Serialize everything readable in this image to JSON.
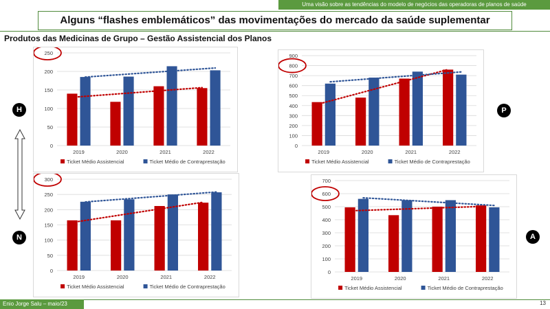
{
  "header": {
    "top_banner": "Uma visão sobre as tendências do modelo de negócios das operadoras de planos de saúde",
    "title": "Alguns “flashes emblemáticos” das movimentações do mercado da saúde suplementar",
    "subtitle": "Produtos das Medicinas de Grupo – Gestão Assistencial dos Planos"
  },
  "badges": {
    "h": "H",
    "p": "P",
    "n": "N",
    "a": "A"
  },
  "footer": {
    "author": "Enio Jorge Salu – maio/23",
    "page_number": "13"
  },
  "colors": {
    "assistencial": "#c00000",
    "contraprestacao": "#2f5597",
    "accent": "#5b9a3f",
    "circle": "#c00000"
  },
  "chart_data": [
    {
      "id": "H",
      "type": "bar",
      "categories": [
        "2019",
        "2020",
        "2021",
        "2022"
      ],
      "ylim": [
        0,
        250
      ],
      "yticks": [
        0,
        50,
        100,
        150,
        200,
        250
      ],
      "series": [
        {
          "name": "Ticket Médio Assistencial",
          "values": [
            140,
            118,
            160,
            155
          ]
        },
        {
          "name": "Ticket Médio de Contraprestação",
          "values": [
            185,
            186,
            214,
            203
          ]
        }
      ],
      "trendlines": true,
      "legend": "bottom",
      "highlighted_tick": "250"
    },
    {
      "id": "P",
      "type": "bar",
      "categories": [
        "2019",
        "2020",
        "2021",
        "2022"
      ],
      "ylim": [
        0,
        900
      ],
      "yticks": [
        0,
        100,
        200,
        300,
        400,
        500,
        600,
        700,
        800,
        900
      ],
      "series": [
        {
          "name": "Ticket Médio Assistencial",
          "values": [
            435,
            480,
            670,
            760
          ]
        },
        {
          "name": "Ticket Médio de Contraprestação",
          "values": [
            620,
            680,
            740,
            710
          ]
        }
      ],
      "trendlines": true,
      "legend": "bottom",
      "highlighted_tick": "800"
    },
    {
      "id": "N",
      "type": "bar",
      "categories": [
        "2019",
        "2020",
        "2021",
        "2022"
      ],
      "ylim": [
        0,
        300
      ],
      "yticks": [
        0,
        50,
        100,
        150,
        200,
        250,
        300
      ],
      "series": [
        {
          "name": "Ticket Médio Assistencial",
          "values": [
            165,
            165,
            212,
            223
          ]
        },
        {
          "name": "Ticket Médio de Contraprestação",
          "values": [
            226,
            234,
            250,
            257
          ]
        }
      ],
      "trendlines": true,
      "legend": "bottom",
      "highlighted_tick": "300"
    },
    {
      "id": "A",
      "type": "bar",
      "categories": [
        "2019",
        "2020",
        "2021",
        "2022"
      ],
      "ylim": [
        0,
        700
      ],
      "yticks": [
        0,
        100,
        200,
        300,
        400,
        500,
        600,
        700
      ],
      "series": [
        {
          "name": "Ticket Médio Assistencial",
          "values": [
            495,
            435,
            500,
            510
          ]
        },
        {
          "name": "Ticket Médio de Contraprestação",
          "values": [
            560,
            550,
            550,
            495
          ]
        }
      ],
      "trendlines": true,
      "legend": "bottom",
      "highlighted_tick": "600"
    }
  ]
}
